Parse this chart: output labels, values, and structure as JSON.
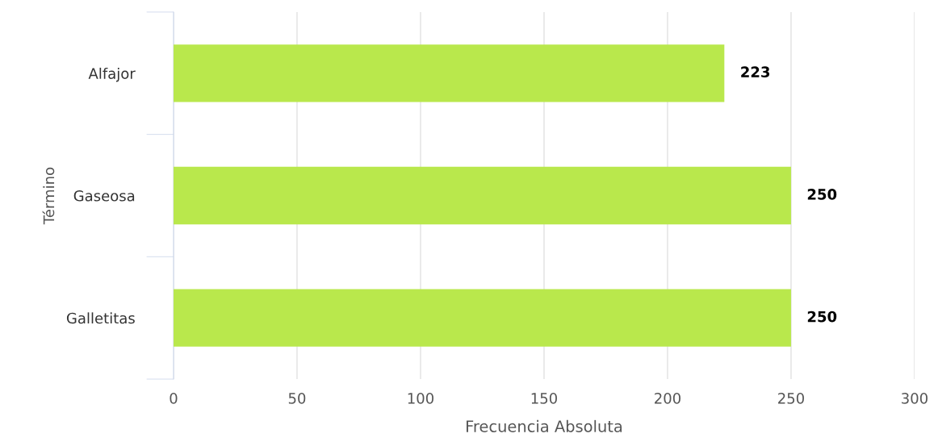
{
  "chart_data": {
    "type": "bar",
    "orientation": "horizontal",
    "xlabel": "Frecuencia Absoluta",
    "ylabel": "Término",
    "categories": [
      "Alfajor",
      "Gaseosa",
      "Galletitas"
    ],
    "values": [
      223,
      250,
      250
    ],
    "color": "#b9e84c",
    "xlim": [
      0,
      300
    ],
    "xticks": [
      0,
      50,
      100,
      150,
      200,
      250,
      300
    ],
    "grid": "x",
    "data_labels": true
  }
}
